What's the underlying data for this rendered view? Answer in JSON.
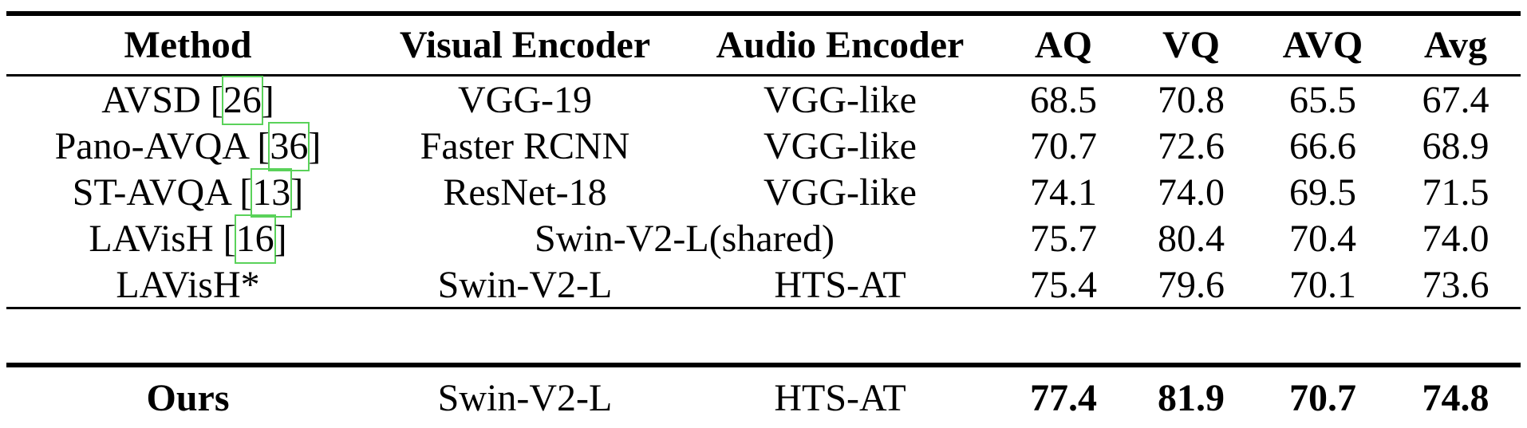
{
  "table": {
    "headers": {
      "method": "Method",
      "visual": "Visual Encoder",
      "audio": "Audio Encoder",
      "aq": "AQ",
      "vq": "VQ",
      "avq": "AVQ",
      "avg": "Avg"
    },
    "rows": [
      {
        "method_name": "AVSD [",
        "cite": "26",
        "method_suffix": "]",
        "visual": "VGG-19",
        "audio": "VGG-like",
        "aq": "68.5",
        "vq": "70.8",
        "avq": "65.5",
        "avg": "67.4"
      },
      {
        "method_name": "Pano-AVQA [",
        "cite": "36",
        "method_suffix": "]",
        "visual": "Faster RCNN",
        "audio": "VGG-like",
        "aq": "70.7",
        "vq": "72.6",
        "avq": "66.6",
        "avg": "68.9"
      },
      {
        "method_name": "ST-AVQA [",
        "cite": "13",
        "method_suffix": "]",
        "visual": "ResNet-18",
        "audio": "VGG-like",
        "aq": "74.1",
        "vq": "74.0",
        "avq": "69.5",
        "avg": "71.5"
      },
      {
        "method_name": "LAVisH [",
        "cite": "16",
        "method_suffix": "]",
        "shared": "Swin-V2-L(shared)",
        "aq": "75.7",
        "vq": "80.4",
        "avq": "70.4",
        "avg": "74.0"
      },
      {
        "method_name": "LAVisH*",
        "visual": "Swin-V2-L",
        "audio": "HTS-AT",
        "aq": "75.4",
        "vq": "79.6",
        "avq": "70.1",
        "avg": "73.6"
      }
    ],
    "ours": {
      "method": "Ours",
      "visual": "Swin-V2-L",
      "audio": "HTS-AT",
      "aq": "77.4",
      "vq": "81.9",
      "avq": "70.7",
      "avg": "74.8"
    }
  },
  "colors": {
    "rule": "#000000",
    "citation_box": "#5ad25a"
  }
}
